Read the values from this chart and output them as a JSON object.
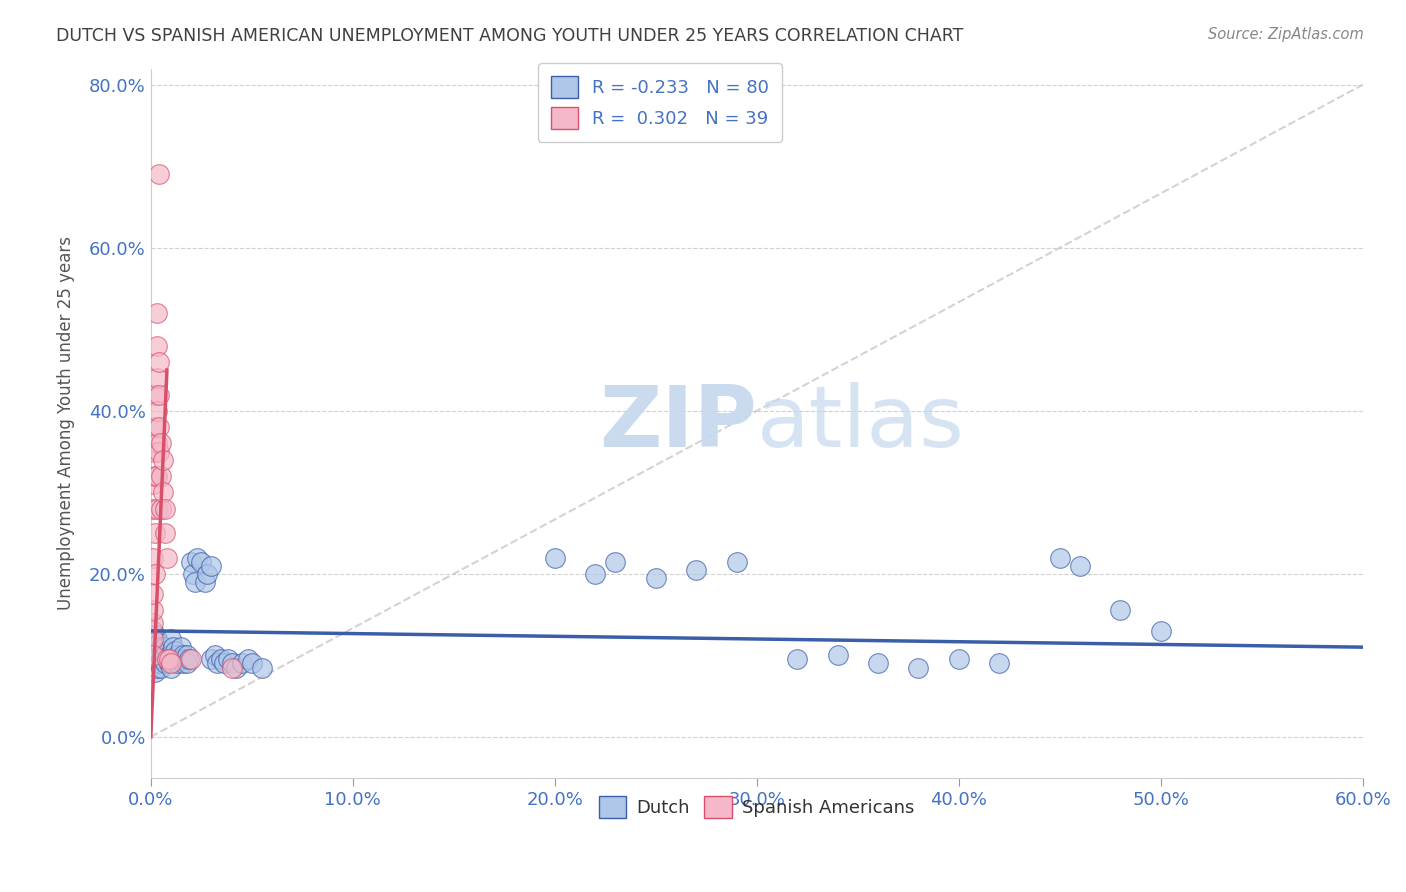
{
  "title": "DUTCH VS SPANISH AMERICAN UNEMPLOYMENT AMONG YOUTH UNDER 25 YEARS CORRELATION CHART",
  "source": "Source: ZipAtlas.com",
  "xlim": [
    0.0,
    0.6
  ],
  "ylim": [
    -0.05,
    0.82
  ],
  "legend_dutch_R": "-0.233",
  "legend_dutch_N": "80",
  "legend_spanish_R": "0.302",
  "legend_spanish_N": "39",
  "dutch_color": "#aec6e8",
  "spanish_color": "#f5b8c8",
  "dutch_line_color": "#3a5ea8",
  "spanish_line_color": "#d94f6a",
  "ref_line_color": "#c8c8c8",
  "title_color": "#404040",
  "axis_label_color": "#4472c4",
  "ylabel": "Unemployment Among Youth under 25 years",
  "dutch_points": [
    [
      0.001,
      0.13
    ],
    [
      0.001,
      0.11
    ],
    [
      0.001,
      0.095
    ],
    [
      0.002,
      0.125
    ],
    [
      0.002,
      0.1
    ],
    [
      0.002,
      0.09
    ],
    [
      0.002,
      0.08
    ],
    [
      0.003,
      0.12
    ],
    [
      0.003,
      0.105
    ],
    [
      0.003,
      0.095
    ],
    [
      0.003,
      0.085
    ],
    [
      0.004,
      0.115
    ],
    [
      0.004,
      0.1
    ],
    [
      0.004,
      0.09
    ],
    [
      0.005,
      0.11
    ],
    [
      0.005,
      0.095
    ],
    [
      0.005,
      0.085
    ],
    [
      0.006,
      0.105
    ],
    [
      0.006,
      0.095
    ],
    [
      0.007,
      0.11
    ],
    [
      0.007,
      0.1
    ],
    [
      0.007,
      0.09
    ],
    [
      0.008,
      0.105
    ],
    [
      0.008,
      0.095
    ],
    [
      0.009,
      0.1
    ],
    [
      0.009,
      0.09
    ],
    [
      0.01,
      0.12
    ],
    [
      0.01,
      0.1
    ],
    [
      0.01,
      0.085
    ],
    [
      0.011,
      0.11
    ],
    [
      0.011,
      0.095
    ],
    [
      0.012,
      0.105
    ],
    [
      0.012,
      0.095
    ],
    [
      0.013,
      0.1
    ],
    [
      0.013,
      0.09
    ],
    [
      0.014,
      0.095
    ],
    [
      0.015,
      0.11
    ],
    [
      0.015,
      0.095
    ],
    [
      0.016,
      0.1
    ],
    [
      0.016,
      0.09
    ],
    [
      0.017,
      0.095
    ],
    [
      0.018,
      0.1
    ],
    [
      0.018,
      0.09
    ],
    [
      0.019,
      0.095
    ],
    [
      0.02,
      0.215
    ],
    [
      0.021,
      0.2
    ],
    [
      0.022,
      0.19
    ],
    [
      0.023,
      0.22
    ],
    [
      0.025,
      0.215
    ],
    [
      0.027,
      0.19
    ],
    [
      0.028,
      0.2
    ],
    [
      0.03,
      0.21
    ],
    [
      0.03,
      0.095
    ],
    [
      0.032,
      0.1
    ],
    [
      0.033,
      0.09
    ],
    [
      0.035,
      0.095
    ],
    [
      0.036,
      0.09
    ],
    [
      0.038,
      0.095
    ],
    [
      0.04,
      0.09
    ],
    [
      0.042,
      0.085
    ],
    [
      0.045,
      0.09
    ],
    [
      0.048,
      0.095
    ],
    [
      0.05,
      0.09
    ],
    [
      0.055,
      0.085
    ],
    [
      0.2,
      0.22
    ],
    [
      0.22,
      0.2
    ],
    [
      0.23,
      0.215
    ],
    [
      0.25,
      0.195
    ],
    [
      0.27,
      0.205
    ],
    [
      0.29,
      0.215
    ],
    [
      0.32,
      0.095
    ],
    [
      0.34,
      0.1
    ],
    [
      0.36,
      0.09
    ],
    [
      0.38,
      0.085
    ],
    [
      0.4,
      0.095
    ],
    [
      0.42,
      0.09
    ],
    [
      0.45,
      0.22
    ],
    [
      0.46,
      0.21
    ],
    [
      0.48,
      0.155
    ],
    [
      0.5,
      0.13
    ]
  ],
  "spanish_points": [
    [
      0.001,
      0.12
    ],
    [
      0.001,
      0.1
    ],
    [
      0.001,
      0.14
    ],
    [
      0.001,
      0.155
    ],
    [
      0.001,
      0.175
    ],
    [
      0.001,
      0.22
    ],
    [
      0.001,
      0.28
    ],
    [
      0.001,
      0.31
    ],
    [
      0.002,
      0.2
    ],
    [
      0.002,
      0.25
    ],
    [
      0.002,
      0.32
    ],
    [
      0.002,
      0.35
    ],
    [
      0.002,
      0.38
    ],
    [
      0.002,
      0.42
    ],
    [
      0.003,
      0.28
    ],
    [
      0.003,
      0.32
    ],
    [
      0.003,
      0.36
    ],
    [
      0.003,
      0.4
    ],
    [
      0.003,
      0.44
    ],
    [
      0.003,
      0.48
    ],
    [
      0.003,
      0.52
    ],
    [
      0.004,
      0.35
    ],
    [
      0.004,
      0.38
    ],
    [
      0.004,
      0.42
    ],
    [
      0.004,
      0.46
    ],
    [
      0.004,
      0.69
    ],
    [
      0.005,
      0.28
    ],
    [
      0.005,
      0.32
    ],
    [
      0.005,
      0.36
    ],
    [
      0.006,
      0.3
    ],
    [
      0.006,
      0.34
    ],
    [
      0.007,
      0.25
    ],
    [
      0.007,
      0.28
    ],
    [
      0.008,
      0.22
    ],
    [
      0.008,
      0.095
    ],
    [
      0.009,
      0.095
    ],
    [
      0.01,
      0.09
    ],
    [
      0.02,
      0.095
    ],
    [
      0.04,
      0.085
    ]
  ]
}
